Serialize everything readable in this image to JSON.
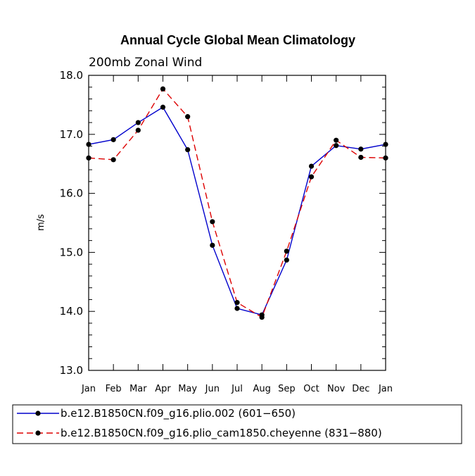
{
  "chart_data": {
    "type": "line",
    "title": "Annual Cycle Global Mean Climatology",
    "subtitle": "200mb Zonal Wind",
    "xlabel": "",
    "ylabel": "m/s",
    "categories": [
      "Jan",
      "Feb",
      "Mar",
      "Apr",
      "May",
      "Jun",
      "Jul",
      "Aug",
      "Sep",
      "Oct",
      "Nov",
      "Dec",
      "Jan"
    ],
    "ylim": [
      13.0,
      18.0
    ],
    "yticks": [
      "13.0",
      "14.0",
      "15.0",
      "16.0",
      "17.0",
      "18.0"
    ],
    "grid": false,
    "legend_position": "bottom",
    "series": [
      {
        "name": "b.e12.B1850CN.f09_g16.plio.002 (601−650)",
        "color": "#0000cc",
        "dash": "solid",
        "values": [
          16.83,
          16.91,
          17.2,
          17.46,
          16.74,
          15.12,
          14.05,
          13.94,
          14.87,
          16.46,
          16.81,
          16.75,
          16.83
        ]
      },
      {
        "name": "b.e12.B1850CN.f09_g16.plio_cam1850.cheyenne (831−880)",
        "color": "#dd0000",
        "dash": "dashed",
        "values": [
          16.6,
          16.57,
          17.07,
          17.77,
          17.3,
          15.52,
          14.15,
          13.9,
          15.02,
          16.28,
          16.9,
          16.61,
          16.6
        ]
      }
    ]
  }
}
